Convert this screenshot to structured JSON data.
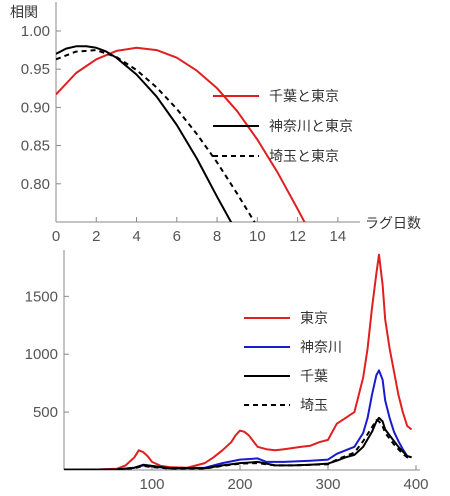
{
  "chart_data": [
    {
      "type": "line",
      "ylabel": "相関",
      "xlabel": "ラグ日数",
      "xlim": [
        0,
        15
      ],
      "ylim": [
        0.75,
        1.0
      ],
      "x_ticks": [
        "0",
        "2",
        "4",
        "6",
        "8",
        "10",
        "12",
        "14"
      ],
      "y_ticks": [
        "0.80",
        "0.85",
        "0.90",
        "0.95",
        "1.00"
      ],
      "legend_position": "right",
      "series": [
        {
          "name": "千葉と東京",
          "color": "#e02020",
          "dash": "solid",
          "x": [
            0,
            1,
            2,
            3,
            4,
            5,
            6,
            7,
            8,
            9,
            10,
            11,
            12,
            12.5
          ],
          "y": [
            0.917,
            0.945,
            0.963,
            0.974,
            0.978,
            0.975,
            0.965,
            0.948,
            0.925,
            0.895,
            0.858,
            0.815,
            0.767,
            0.742
          ]
        },
        {
          "name": "神奈川と東京",
          "color": "#000000",
          "dash": "solid",
          "x": [
            0,
            0.5,
            1,
            1.5,
            2,
            2.5,
            3,
            4,
            5,
            6,
            7,
            8,
            8.9
          ],
          "y": [
            0.97,
            0.977,
            0.98,
            0.98,
            0.978,
            0.973,
            0.965,
            0.943,
            0.914,
            0.877,
            0.833,
            0.783,
            0.74
          ]
        },
        {
          "name": "埼玉と東京",
          "color": "#000000",
          "dash": "dashed",
          "x": [
            0,
            1,
            2,
            3,
            4,
            5,
            6,
            7,
            8,
            9,
            10,
            10.2
          ],
          "y": [
            0.963,
            0.973,
            0.975,
            0.966,
            0.949,
            0.926,
            0.898,
            0.865,
            0.828,
            0.787,
            0.744,
            0.738
          ]
        }
      ]
    },
    {
      "type": "line",
      "xlim": [
        0,
        400
      ],
      "ylim": [
        0,
        1900
      ],
      "x_ticks": [
        "100",
        "200",
        "300",
        "400"
      ],
      "y_ticks": [
        "500",
        "1000",
        "1500"
      ],
      "legend_position": "right",
      "series": [
        {
          "name": "東京",
          "color": "#e02020",
          "dash": "solid",
          "x": [
            0,
            40,
            60,
            70,
            80,
            85,
            90,
            95,
            100,
            110,
            120,
            140,
            160,
            170,
            180,
            190,
            195,
            200,
            205,
            210,
            215,
            220,
            230,
            240,
            250,
            260,
            270,
            280,
            290,
            300,
            310,
            320,
            330,
            340,
            345,
            350,
            355,
            358,
            362,
            365,
            370,
            375,
            380,
            385,
            390,
            395
          ],
          "y": [
            3,
            5,
            10,
            40,
            110,
            170,
            155,
            120,
            70,
            35,
            25,
            20,
            60,
            110,
            170,
            240,
            300,
            340,
            330,
            300,
            250,
            200,
            180,
            170,
            180,
            190,
            200,
            210,
            240,
            260,
            400,
            450,
            500,
            800,
            1050,
            1400,
            1700,
            1860,
            1600,
            1300,
            1050,
            850,
            650,
            500,
            380,
            350
          ]
        },
        {
          "name": "神奈川",
          "color": "#1a1ad0",
          "dash": "solid",
          "x": [
            0,
            60,
            80,
            90,
            100,
            120,
            160,
            180,
            200,
            220,
            230,
            250,
            280,
            300,
            310,
            320,
            330,
            340,
            345,
            350,
            355,
            358,
            362,
            365,
            370,
            375,
            380,
            385,
            390,
            395
          ],
          "y": [
            2,
            5,
            20,
            40,
            30,
            15,
            20,
            60,
            90,
            100,
            70,
            70,
            80,
            90,
            140,
            170,
            200,
            320,
            450,
            650,
            820,
            860,
            780,
            600,
            450,
            330,
            250,
            180,
            120,
            110
          ]
        },
        {
          "name": "千葉",
          "color": "#000000",
          "dash": "solid",
          "x": [
            0,
            60,
            80,
            90,
            100,
            120,
            160,
            180,
            200,
            220,
            240,
            260,
            280,
            300,
            310,
            320,
            330,
            340,
            350,
            355,
            358,
            362,
            365,
            370,
            375,
            380,
            385,
            390,
            395
          ],
          "y": [
            2,
            4,
            20,
            45,
            35,
            15,
            15,
            40,
            60,
            70,
            40,
            40,
            45,
            55,
            80,
            110,
            130,
            200,
            330,
            420,
            450,
            420,
            350,
            300,
            250,
            200,
            160,
            120,
            110
          ]
        },
        {
          "name": "埼玉",
          "color": "#000000",
          "dash": "dashed",
          "x": [
            0,
            60,
            80,
            90,
            100,
            120,
            160,
            180,
            200,
            220,
            240,
            260,
            280,
            300,
            310,
            320,
            330,
            340,
            350,
            355,
            358,
            362,
            365,
            370,
            375,
            380,
            385,
            390,
            395
          ],
          "y": [
            2,
            4,
            15,
            35,
            25,
            12,
            12,
            35,
            55,
            60,
            40,
            40,
            45,
            50,
            90,
            120,
            150,
            250,
            370,
            430,
            420,
            380,
            320,
            270,
            220,
            180,
            140,
            110,
            100
          ]
        }
      ]
    }
  ]
}
